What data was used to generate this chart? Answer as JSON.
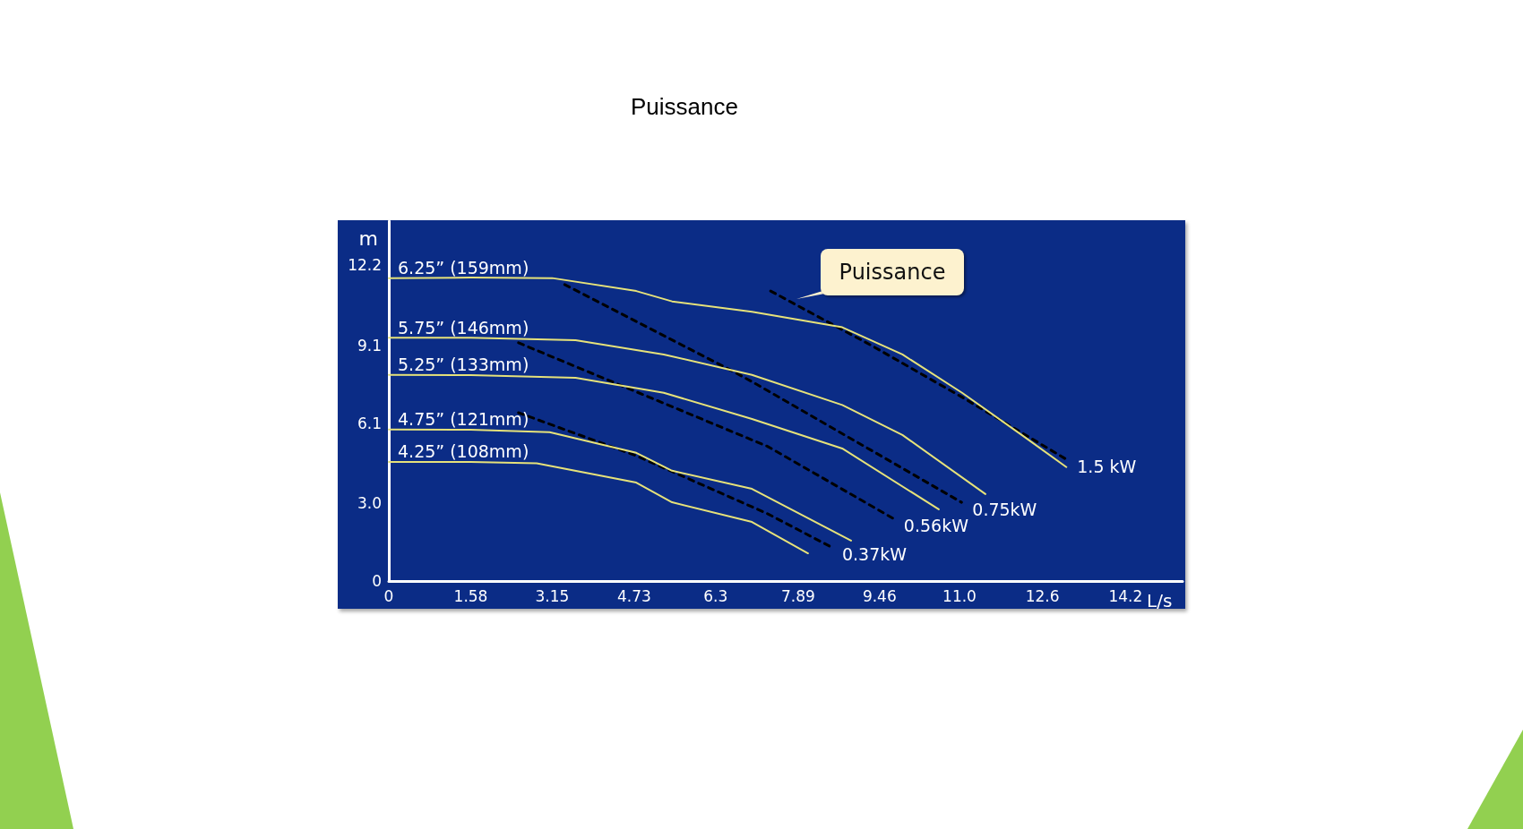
{
  "chart_data": {
    "type": "line",
    "title": "Puissance",
    "xlabel": "L/s",
    "ylabel": "m",
    "xlim": [
      0,
      15.3
    ],
    "ylim": [
      0,
      13.9
    ],
    "xticks": [
      0,
      1.58,
      3.15,
      4.73,
      6.3,
      7.89,
      9.46,
      {
        "value": 11.0,
        "label": "11.0"
      },
      12.6,
      14.2
    ],
    "yticks": [
      0,
      {
        "value": 3.0,
        "label": "3.0"
      },
      6.1,
      9.1,
      12.2
    ],
    "grid": false,
    "legend": false,
    "marker": "none",
    "series": [
      {
        "name": "6.25” (159mm)",
        "color": "#e6e27a",
        "line_style": "solid",
        "x": [
          0,
          1.58,
          3.15,
          4.77,
          5.46,
          7.0,
          8.74,
          9.9,
          11.05,
          12.2,
          13.06
        ],
        "values": [
          11.7,
          11.72,
          11.7,
          11.2,
          10.8,
          10.4,
          9.8,
          8.75,
          7.27,
          5.64,
          4.4
        ]
      },
      {
        "name": "5.75” (146mm)",
        "color": "#e6e27a",
        "line_style": "solid",
        "x": [
          0,
          1.58,
          3.6,
          5.3,
          7.0,
          8.74,
          9.9,
          11.5
        ],
        "values": [
          9.4,
          9.4,
          9.3,
          8.75,
          7.96,
          6.8,
          5.64,
          3.36
        ]
      },
      {
        "name": "5.25” (133mm)",
        "color": "#e6e27a",
        "line_style": "solid",
        "x": [
          0,
          1.58,
          3.6,
          5.3,
          7.0,
          8.74,
          10.6
        ],
        "values": [
          7.96,
          7.95,
          7.85,
          7.27,
          6.26,
          5.12,
          2.77
        ]
      },
      {
        "name": "4.75” (121mm)",
        "color": "#e6e27a",
        "line_style": "solid",
        "x": [
          0,
          1.58,
          3.1,
          4.77,
          5.46,
          7.0,
          8.91
        ],
        "values": [
          5.85,
          5.84,
          5.75,
          4.95,
          4.26,
          3.56,
          1.56
        ]
      },
      {
        "name": "4.25” (108mm)",
        "color": "#e6e27a",
        "line_style": "solid",
        "x": [
          0,
          1.58,
          2.85,
          4.77,
          5.46,
          7.0,
          8.08
        ],
        "values": [
          4.6,
          4.6,
          4.55,
          3.8,
          3.04,
          2.28,
          1.07
        ]
      },
      {
        "name": "1.5 kW",
        "color": "#000000",
        "line_style": "dashed",
        "x": [
          7.36,
          9.3,
          11.05,
          13.06
        ],
        "values": [
          11.2,
          9.1,
          7.1,
          4.7
        ]
      },
      {
        "name": "0.75kW",
        "color": "#000000",
        "line_style": "dashed",
        "x": [
          3.39,
          6.67,
          7.0,
          11.04
        ],
        "values": [
          11.45,
          8.06,
          7.7,
          3.04
        ]
      },
      {
        "name": "0.56kW",
        "color": "#000000",
        "line_style": "dashed",
        "x": [
          2.5,
          7.3,
          9.72
        ],
        "values": [
          9.2,
          5.2,
          2.42
        ]
      },
      {
        "name": "0.37kW",
        "color": "#000000",
        "line_style": "dashed",
        "x": [
          2.5,
          4.77,
          7.3,
          8.53
        ],
        "values": [
          6.5,
          4.84,
          2.6,
          1.31
        ]
      }
    ],
    "annotations": [
      "Puissance"
    ]
  }
}
